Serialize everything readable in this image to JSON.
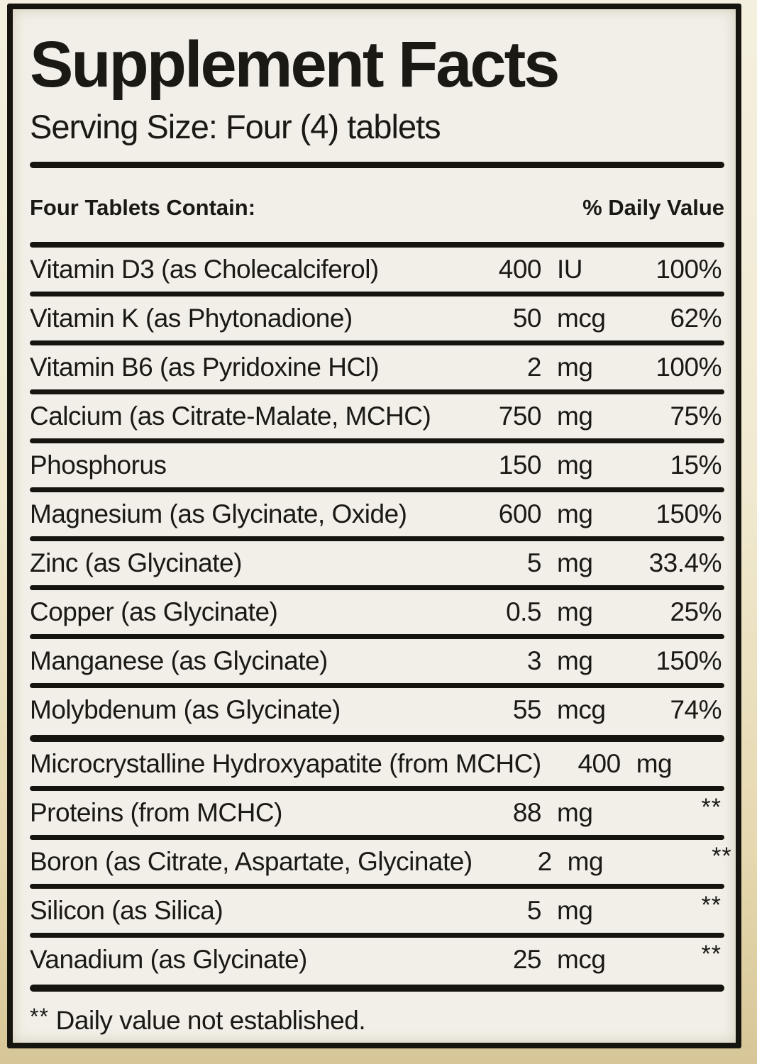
{
  "label": {
    "title": "Supplement Facts",
    "serving_size": "Serving Size: Four (4) tablets",
    "table_header": {
      "left": "Four Tablets Contain:",
      "right": "% Daily Value"
    },
    "main_rows": [
      {
        "name": "Vitamin D3 (as Cholecalciferol)",
        "amount": "400",
        "unit": "IU",
        "daily_value": "100%"
      },
      {
        "name": "Vitamin K (as Phytonadione)",
        "amount": "50",
        "unit": "mcg",
        "daily_value": "62%"
      },
      {
        "name": "Vitamin B6 (as Pyridoxine HCl)",
        "amount": "2",
        "unit": "mg",
        "daily_value": "100%"
      },
      {
        "name": "Calcium (as Citrate-Malate, MCHC)",
        "amount": "750",
        "unit": "mg",
        "daily_value": "75%"
      },
      {
        "name": "Phosphorus",
        "amount": "150",
        "unit": "mg",
        "daily_value": "15%"
      },
      {
        "name": "Magnesium (as Glycinate, Oxide)",
        "amount": "600",
        "unit": "mg",
        "daily_value": "150%"
      },
      {
        "name": "Zinc (as Glycinate)",
        "amount": "5",
        "unit": "mg",
        "daily_value": "33.4%"
      },
      {
        "name": "Copper (as Glycinate)",
        "amount": "0.5",
        "unit": "mg",
        "daily_value": "25%"
      },
      {
        "name": "Manganese (as Glycinate)",
        "amount": "3",
        "unit": "mg",
        "daily_value": "150%"
      },
      {
        "name": "Molybdenum (as Glycinate)",
        "amount": "55",
        "unit": "mcg",
        "daily_value": "74%"
      }
    ],
    "secondary_rows": [
      {
        "name": "Microcrystalline Hydroxyapatite (from MCHC)",
        "amount": "400",
        "unit": "mg",
        "daily_value": "**"
      },
      {
        "name": "Proteins (from MCHC)",
        "amount": "88",
        "unit": "mg",
        "daily_value": "**"
      },
      {
        "name": "Boron (as Citrate, Aspartate, Glycinate)",
        "amount": "2",
        "unit": "mg",
        "daily_value": "**"
      },
      {
        "name": "Silicon (as Silica)",
        "amount": "5",
        "unit": "mg",
        "daily_value": "**"
      },
      {
        "name": "Vanadium (as Glycinate)",
        "amount": "25",
        "unit": "mcg",
        "daily_value": "**"
      }
    ],
    "footnote_stars": "**",
    "footnote_text": " Daily value not established.",
    "colors": {
      "ink": "#16140e",
      "paper": "#f1efe7",
      "background_top": "#f4f0df",
      "background_bottom": "#d7c697"
    }
  }
}
